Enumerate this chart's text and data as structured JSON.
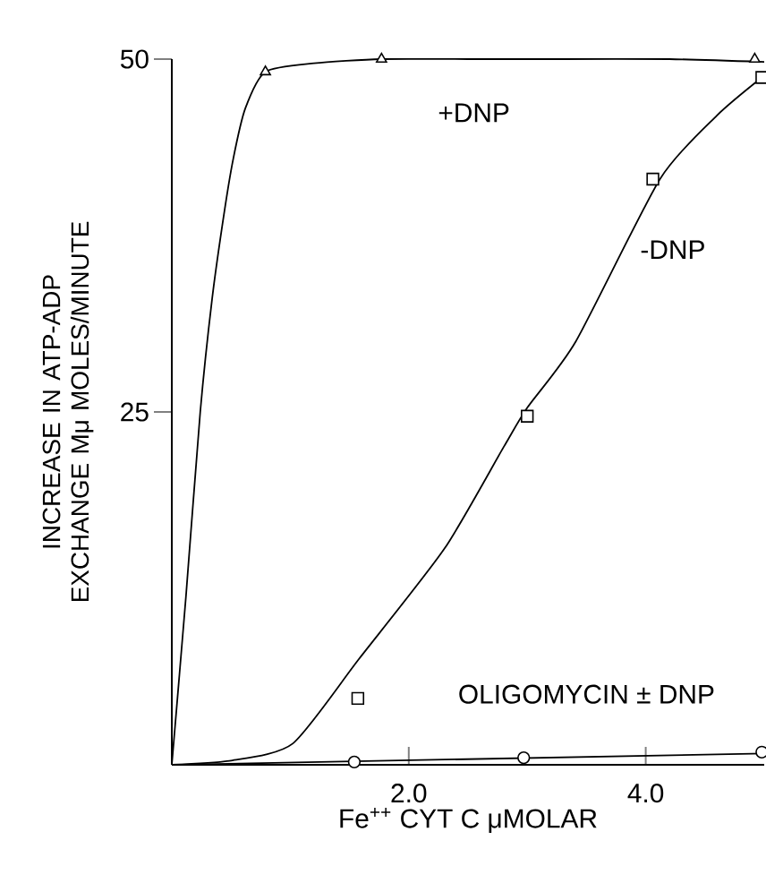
{
  "chart_data": {
    "type": "scatter",
    "xlabel": "Fe$^{++}$ CYT C  μMOLAR",
    "ylabel": "INCREASE IN ATP-ADP EXCHANGE Mμ MOLES/MINUTE",
    "xlim": [
      0,
      5
    ],
    "ylim": [
      0,
      50
    ],
    "xticks": [
      {
        "value": 2,
        "label": "2.0"
      },
      {
        "value": 4,
        "label": "4.0"
      }
    ],
    "yticks": [
      25,
      50
    ],
    "series": [
      {
        "name": "+DNP",
        "marker": "triangle",
        "color": "#000000",
        "x": [
          0.79,
          1.77,
          4.92
        ],
        "values": [
          49.1,
          50,
          50
        ]
      },
      {
        "name": "-DNP",
        "marker": "square",
        "color": "#000000",
        "x": [
          1.57,
          3.0,
          4.06,
          4.98
        ],
        "values": [
          4.7,
          24.7,
          41.5,
          48.7
        ]
      },
      {
        "name": "OLIGOMYCIN ± DNP",
        "marker": "circle",
        "color": "#000000",
        "x": [
          1.54,
          2.97,
          4.98
        ],
        "values": [
          0.2,
          0.5,
          0.9
        ]
      },
      {
        "type": "line",
        "marker": "none",
        "color": "#000000",
        "x": [
          0,
          0.12,
          0.24,
          0.34,
          0.44,
          0.52,
          0.62,
          0.79,
          1.2,
          1.77,
          2.5,
          3.3,
          4.2,
          5.0
        ],
        "values": [
          0,
          12,
          25,
          33,
          39,
          43,
          46.5,
          49.1,
          49.7,
          50,
          50,
          50,
          50,
          49.8
        ]
      },
      {
        "type": "line",
        "marker": "none",
        "color": "#000000",
        "x": [
          0,
          0.5,
          1.02,
          1.58,
          2.3,
          2.8,
          3.0,
          3.41,
          4.12,
          4.6,
          4.98
        ],
        "values": [
          0,
          0.3,
          1.5,
          7.5,
          15.3,
          22.5,
          25.3,
          30,
          41.5,
          46,
          48.7
        ]
      },
      {
        "type": "line",
        "marker": "none",
        "color": "#000000",
        "x": [
          0,
          5
        ],
        "values": [
          0,
          0.8
        ]
      }
    ]
  }
}
